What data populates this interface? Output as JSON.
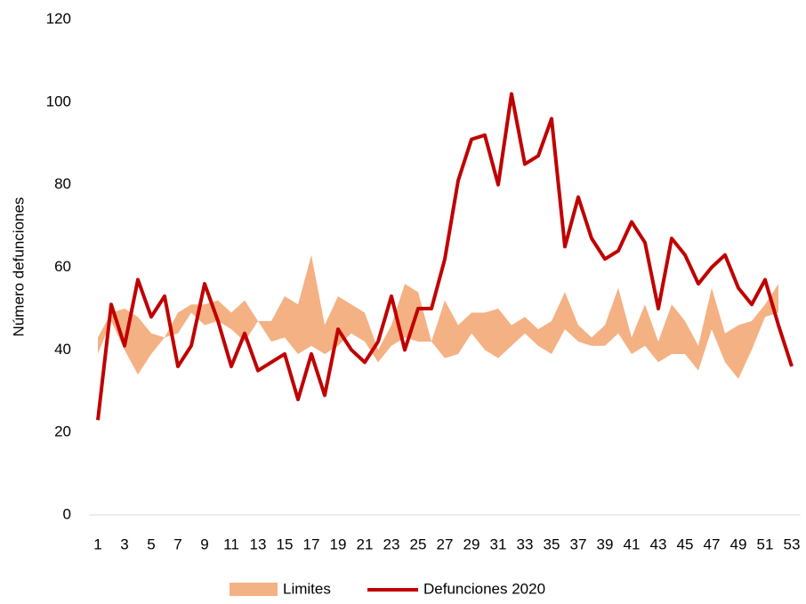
{
  "chart_data": {
    "type": "band_line",
    "y_label": "Número defunciones",
    "categories": [
      "1",
      null,
      "3",
      null,
      "5",
      null,
      "7",
      null,
      "9",
      null,
      "11",
      null,
      "13",
      null,
      "15",
      null,
      "17",
      null,
      "19",
      null,
      "21",
      null,
      "23",
      null,
      "25",
      null,
      "27",
      null,
      "29",
      null,
      "31",
      null,
      "33",
      null,
      "35",
      null,
      "37",
      null,
      "39",
      null,
      "41",
      null,
      "43",
      null,
      "45",
      null,
      "47",
      null,
      "49",
      null,
      "51",
      null,
      "53"
    ],
    "ylim": [
      0,
      120
    ],
    "yticks": [
      0,
      20,
      40,
      60,
      80,
      100,
      120
    ],
    "grid": false,
    "legend": "bottom",
    "band": {
      "name": "Limites",
      "color": "#f4b183",
      "upper": [
        43,
        49,
        50,
        48,
        44,
        43,
        49,
        51,
        51,
        52,
        49,
        52,
        47,
        47,
        53,
        51,
        63,
        46,
        53,
        51,
        49,
        40,
        46,
        56,
        54,
        42,
        52,
        46,
        49,
        49,
        50,
        46,
        48,
        45,
        47,
        54,
        46,
        43,
        46,
        55,
        43,
        51,
        42,
        51,
        47,
        41,
        55,
        44,
        46,
        47,
        51,
        56,
        null
      ],
      "lower": [
        39,
        47,
        40,
        34,
        39,
        43,
        44,
        49,
        46,
        47,
        45,
        42,
        47,
        42,
        43,
        39,
        41,
        39,
        41,
        44,
        42,
        37,
        41,
        43,
        42,
        42,
        38,
        39,
        44,
        40,
        38,
        41,
        44,
        41,
        39,
        45,
        42,
        41,
        41,
        44,
        39,
        41,
        37,
        39,
        39,
        35,
        45,
        37,
        33,
        40,
        48,
        49,
        null
      ]
    },
    "series": [
      {
        "name": "Defunciones 2020",
        "color": "#c00000",
        "values": [
          23,
          51,
          41,
          57,
          48,
          53,
          36,
          41,
          56,
          47,
          36,
          44,
          35,
          37,
          39,
          28,
          39,
          29,
          45,
          40,
          37,
          42,
          53,
          40,
          50,
          50,
          62,
          81,
          91,
          92,
          80,
          102,
          85,
          87,
          96,
          65,
          77,
          67,
          62,
          64,
          71,
          66,
          50,
          67,
          63,
          56,
          60,
          63,
          55,
          51,
          57,
          46,
          36
        ]
      }
    ]
  }
}
